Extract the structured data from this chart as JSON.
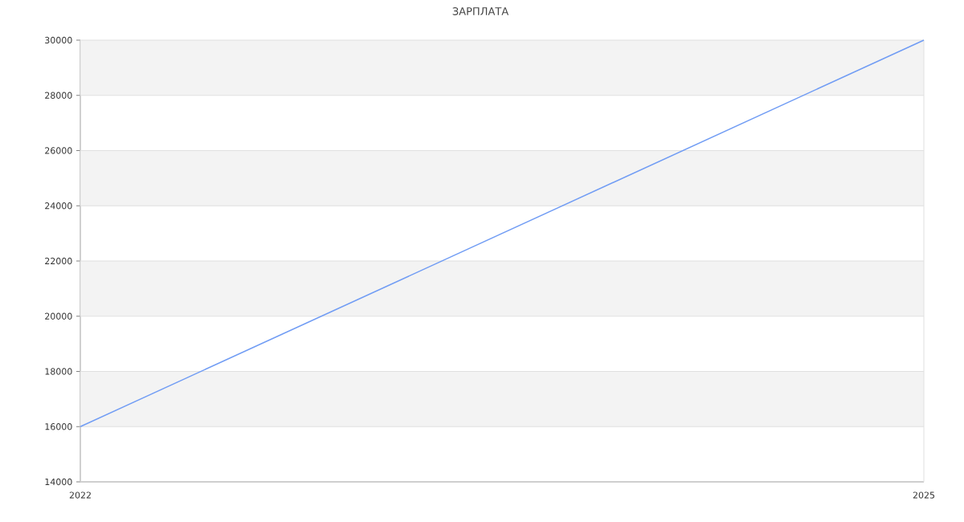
{
  "chart_data": {
    "type": "line",
    "title": "ЗАРПЛАТА",
    "x": [
      2022,
      2025
    ],
    "values": [
      16000,
      30000
    ],
    "color": "#709cf4",
    "xlim": [
      2022,
      2025
    ],
    "xticks": [
      2022,
      2025
    ],
    "ylim": [
      14000,
      30000
    ],
    "yticks": [
      14000,
      16000,
      18000,
      20000,
      22000,
      24000,
      26000,
      28000,
      30000
    ],
    "grid": true,
    "line_style": "solid"
  }
}
